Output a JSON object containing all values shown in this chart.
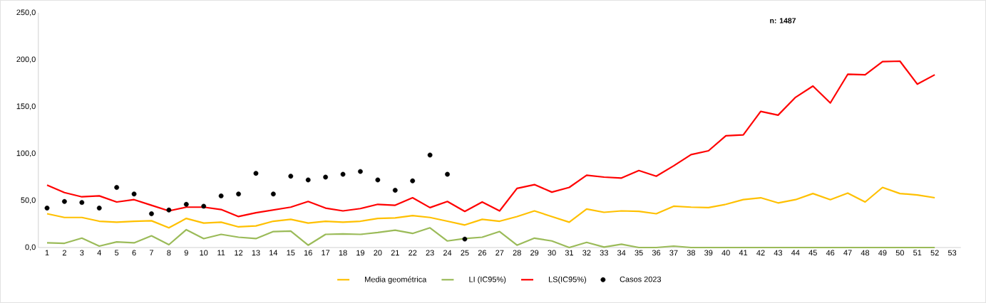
{
  "chart_data": {
    "type": "line",
    "categories": [
      "1",
      "2",
      "3",
      "4",
      "5",
      "6",
      "7",
      "8",
      "9",
      "10",
      "11",
      "12",
      "13",
      "14",
      "15",
      "16",
      "17",
      "18",
      "19",
      "20",
      "21",
      "22",
      "23",
      "24",
      "25",
      "26",
      "27",
      "28",
      "29",
      "30",
      "31",
      "32",
      "33",
      "34",
      "35",
      "36",
      "37",
      "38",
      "39",
      "40",
      "41",
      "42",
      "43",
      "44",
      "45",
      "46",
      "47",
      "48",
      "49",
      "50",
      "51",
      "52",
      "53"
    ],
    "ylim": [
      0,
      250
    ],
    "yticks": [
      {
        "value": 0,
        "label": "0,0"
      },
      {
        "value": 50,
        "label": "50,0"
      },
      {
        "value": 100,
        "label": "100,0"
      },
      {
        "value": 150,
        "label": "150,0"
      },
      {
        "value": 200,
        "label": "200,0"
      },
      {
        "value": 250,
        "label": "250,0"
      }
    ],
    "grid": false,
    "legend": "bottom",
    "line_style": "solid",
    "annotations": [
      "n: 1487"
    ],
    "series": [
      {
        "name": "Media geométrica",
        "color": "#ffc000",
        "values": [
          36,
          32,
          32,
          28,
          27,
          28,
          28.5,
          21,
          31,
          26,
          27,
          22,
          23,
          28,
          30,
          26,
          28,
          27,
          28,
          31,
          31.5,
          34,
          32,
          28,
          24,
          30,
          28,
          33,
          39,
          33,
          27,
          41,
          37.5,
          39,
          38.5,
          36,
          44,
          43,
          42.5,
          46,
          51,
          53,
          47.5,
          51,
          57.5,
          51,
          58,
          48.5,
          64,
          57.5,
          56,
          53,
          null
        ]
      },
      {
        "name": "LI (IC95%)",
        "color": "#9bbb59",
        "values": [
          5,
          4.5,
          10,
          1.5,
          6,
          5,
          12.5,
          3,
          19,
          9.5,
          14,
          11,
          9.5,
          17,
          17.5,
          2.5,
          14,
          14.5,
          14,
          16,
          18.5,
          15,
          21,
          7,
          9.5,
          11,
          17,
          2.5,
          10,
          7,
          0,
          5.5,
          0.5,
          3.5,
          0,
          0,
          1.5,
          0,
          0,
          0,
          0,
          0,
          0,
          0,
          0,
          0,
          0,
          0,
          0,
          0,
          0,
          0,
          null
        ]
      },
      {
        "name": "LS(IC95%)",
        "color": "#ff0000",
        "values": [
          66.5,
          58.5,
          54,
          55,
          48.5,
          51,
          45,
          39,
          43,
          43,
          40.5,
          33,
          37,
          40,
          43,
          49,
          42,
          39,
          41.5,
          46,
          45,
          53,
          42.5,
          49,
          38.5,
          48.5,
          39,
          63,
          67,
          59,
          64,
          77,
          75,
          74,
          82,
          76,
          87,
          99,
          103,
          119,
          120,
          145,
          141,
          160,
          172,
          154,
          184.5,
          184,
          198,
          198.5,
          174,
          184,
          null
        ]
      },
      {
        "name": "Casos 2023",
        "color": "#000000",
        "type": "scatter",
        "marker": "circle",
        "values": [
          42,
          49,
          48,
          42,
          64,
          57,
          36,
          40,
          46,
          44,
          55,
          57,
          79,
          57,
          76,
          72,
          75,
          78,
          81,
          72,
          61,
          71,
          98.5,
          78,
          9,
          null,
          null,
          null,
          null,
          null,
          null,
          null,
          null,
          null,
          null,
          null,
          null,
          null,
          null,
          null,
          null,
          null,
          null,
          null,
          null,
          null,
          null,
          null,
          null,
          null,
          null,
          null,
          null
        ]
      }
    ]
  }
}
